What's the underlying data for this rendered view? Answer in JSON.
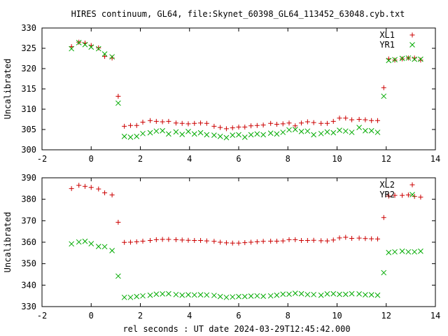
{
  "title": "HIRES continuum, GL64, file:Skynet_60398_GL64_113452_63048.cyb.txt",
  "xlabel": "rel seconds : UT date 2024-03-29T12:45:42.000",
  "colors": {
    "plus_series": "#cc0000",
    "x_series": "#00aa00",
    "frame": "#000000"
  },
  "chart_data": [
    {
      "type": "scatter",
      "ylabel": "Uncalibrated",
      "xlim": [
        -2,
        14
      ],
      "ylim": [
        300,
        330
      ],
      "xticks": [
        "-2",
        "0",
        "2",
        "4",
        "6",
        "8",
        "10",
        "12",
        "14"
      ],
      "yticks": [
        "300",
        "305",
        "310",
        "315",
        "320",
        "325",
        "330"
      ],
      "legend_position": "top-right",
      "series": [
        {
          "name": "XL1",
          "marker": "plus",
          "points": [
            [
              -0.8,
              325.4
            ],
            [
              -0.5,
              326.5
            ],
            [
              -0.25,
              326.3
            ],
            [
              0.0,
              325.7
            ],
            [
              0.3,
              325.1
            ],
            [
              0.55,
              323.0
            ],
            [
              0.85,
              322.6
            ],
            [
              1.1,
              313.2
            ],
            [
              1.35,
              305.8
            ],
            [
              1.6,
              306.0
            ],
            [
              1.85,
              306.0
            ],
            [
              2.1,
              306.8
            ],
            [
              2.4,
              307.2
            ],
            [
              2.65,
              307.0
            ],
            [
              2.9,
              306.9
            ],
            [
              3.15,
              307.0
            ],
            [
              3.45,
              306.6
            ],
            [
              3.7,
              306.5
            ],
            [
              3.95,
              306.4
            ],
            [
              4.2,
              306.5
            ],
            [
              4.45,
              306.6
            ],
            [
              4.7,
              306.5
            ],
            [
              5.0,
              305.8
            ],
            [
              5.25,
              305.5
            ],
            [
              5.5,
              305.2
            ],
            [
              5.75,
              305.4
            ],
            [
              6.0,
              305.6
            ],
            [
              6.25,
              305.6
            ],
            [
              6.5,
              305.9
            ],
            [
              6.75,
              306.0
            ],
            [
              7.0,
              306.1
            ],
            [
              7.3,
              306.5
            ],
            [
              7.55,
              306.3
            ],
            [
              7.8,
              306.4
            ],
            [
              8.05,
              306.6
            ],
            [
              8.3,
              305.9
            ],
            [
              8.55,
              306.6
            ],
            [
              8.8,
              306.9
            ],
            [
              9.05,
              306.7
            ],
            [
              9.35,
              306.5
            ],
            [
              9.6,
              306.5
            ],
            [
              9.85,
              307.0
            ],
            [
              10.1,
              307.8
            ],
            [
              10.35,
              307.8
            ],
            [
              10.6,
              307.4
            ],
            [
              10.9,
              307.5
            ],
            [
              11.15,
              307.4
            ],
            [
              11.4,
              307.2
            ],
            [
              11.65,
              307.2
            ],
            [
              11.9,
              315.3
            ],
            [
              12.1,
              322.4
            ],
            [
              12.35,
              322.1
            ],
            [
              12.65,
              322.4
            ],
            [
              12.9,
              322.6
            ],
            [
              13.15,
              322.6
            ],
            [
              13.4,
              322.1
            ]
          ]
        },
        {
          "name": "YR1",
          "marker": "cross",
          "points": [
            [
              -0.8,
              324.9
            ],
            [
              -0.5,
              326.4
            ],
            [
              -0.25,
              325.9
            ],
            [
              0.0,
              325.3
            ],
            [
              0.3,
              324.9
            ],
            [
              0.55,
              323.6
            ],
            [
              0.85,
              322.9
            ],
            [
              1.1,
              311.5
            ],
            [
              1.35,
              303.3
            ],
            [
              1.6,
              303.1
            ],
            [
              1.85,
              303.3
            ],
            [
              2.1,
              304.0
            ],
            [
              2.4,
              304.2
            ],
            [
              2.65,
              304.6
            ],
            [
              2.9,
              304.7
            ],
            [
              3.15,
              303.9
            ],
            [
              3.45,
              304.4
            ],
            [
              3.7,
              303.8
            ],
            [
              3.95,
              304.5
            ],
            [
              4.2,
              303.9
            ],
            [
              4.45,
              304.2
            ],
            [
              4.7,
              303.7
            ],
            [
              5.0,
              303.6
            ],
            [
              5.25,
              303.3
            ],
            [
              5.5,
              303.0
            ],
            [
              5.75,
              303.6
            ],
            [
              6.0,
              303.7
            ],
            [
              6.25,
              303.1
            ],
            [
              6.5,
              303.7
            ],
            [
              6.75,
              303.9
            ],
            [
              7.0,
              303.7
            ],
            [
              7.3,
              304.1
            ],
            [
              7.55,
              303.9
            ],
            [
              7.8,
              304.3
            ],
            [
              8.05,
              304.9
            ],
            [
              8.3,
              305.0
            ],
            [
              8.55,
              304.5
            ],
            [
              8.8,
              304.6
            ],
            [
              9.05,
              303.7
            ],
            [
              9.35,
              304.0
            ],
            [
              9.6,
              304.4
            ],
            [
              9.85,
              304.2
            ],
            [
              10.1,
              304.8
            ],
            [
              10.35,
              304.6
            ],
            [
              10.6,
              304.3
            ],
            [
              10.9,
              305.5
            ],
            [
              11.15,
              304.7
            ],
            [
              11.4,
              304.7
            ],
            [
              11.65,
              304.3
            ],
            [
              11.9,
              313.2
            ],
            [
              12.1,
              322.0
            ],
            [
              12.35,
              322.2
            ],
            [
              12.65,
              322.5
            ],
            [
              12.9,
              322.6
            ],
            [
              13.15,
              322.3
            ],
            [
              13.4,
              322.3
            ]
          ]
        }
      ]
    },
    {
      "type": "scatter",
      "ylabel": "Uncalibrated",
      "xlim": [
        -2,
        14
      ],
      "ylim": [
        330,
        390
      ],
      "xticks": [
        "-2",
        "0",
        "2",
        "4",
        "6",
        "8",
        "10",
        "12",
        "14"
      ],
      "yticks": [
        "330",
        "340",
        "350",
        "360",
        "370",
        "380",
        "390"
      ],
      "legend_position": "top-right",
      "series": [
        {
          "name": "XL2",
          "marker": "plus",
          "points": [
            [
              -0.8,
              385.0
            ],
            [
              -0.5,
              386.5
            ],
            [
              -0.25,
              386.0
            ],
            [
              0.0,
              385.5
            ],
            [
              0.3,
              384.8
            ],
            [
              0.55,
              383.0
            ],
            [
              0.85,
              382.0
            ],
            [
              1.1,
              369.3
            ],
            [
              1.35,
              359.9
            ],
            [
              1.6,
              360.0
            ],
            [
              1.85,
              360.2
            ],
            [
              2.1,
              360.5
            ],
            [
              2.4,
              360.8
            ],
            [
              2.65,
              361.2
            ],
            [
              2.9,
              361.3
            ],
            [
              3.15,
              361.3
            ],
            [
              3.45,
              361.2
            ],
            [
              3.7,
              361.0
            ],
            [
              3.95,
              360.9
            ],
            [
              4.2,
              360.8
            ],
            [
              4.45,
              360.8
            ],
            [
              4.7,
              360.6
            ],
            [
              5.0,
              360.4
            ],
            [
              5.25,
              360.0
            ],
            [
              5.5,
              359.7
            ],
            [
              5.75,
              359.6
            ],
            [
              6.0,
              359.6
            ],
            [
              6.25,
              359.8
            ],
            [
              6.5,
              360.0
            ],
            [
              6.75,
              360.2
            ],
            [
              7.0,
              360.4
            ],
            [
              7.3,
              360.5
            ],
            [
              7.55,
              360.5
            ],
            [
              7.8,
              360.6
            ],
            [
              8.05,
              361.2
            ],
            [
              8.3,
              361.2
            ],
            [
              8.55,
              360.8
            ],
            [
              8.8,
              360.8
            ],
            [
              9.05,
              360.9
            ],
            [
              9.35,
              360.7
            ],
            [
              9.6,
              360.6
            ],
            [
              9.85,
              361.0
            ],
            [
              10.1,
              362.0
            ],
            [
              10.35,
              362.3
            ],
            [
              10.6,
              361.8
            ],
            [
              10.9,
              361.9
            ],
            [
              11.15,
              361.7
            ],
            [
              11.4,
              361.6
            ],
            [
              11.65,
              361.5
            ],
            [
              11.9,
              371.5
            ],
            [
              12.1,
              381.5
            ],
            [
              12.35,
              381.8
            ],
            [
              12.65,
              381.8
            ],
            [
              12.9,
              382.0
            ],
            [
              13.15,
              381.3
            ],
            [
              13.4,
              381.0
            ]
          ]
        },
        {
          "name": "YR2",
          "marker": "cross",
          "points": [
            [
              -0.8,
              359.2
            ],
            [
              -0.5,
              360.1
            ],
            [
              -0.25,
              360.4
            ],
            [
              0.0,
              359.3
            ],
            [
              0.3,
              358.0
            ],
            [
              0.55,
              357.9
            ],
            [
              0.85,
              356.1
            ],
            [
              1.1,
              344.2
            ],
            [
              1.35,
              334.3
            ],
            [
              1.6,
              334.3
            ],
            [
              1.85,
              334.7
            ],
            [
              2.1,
              335.0
            ],
            [
              2.4,
              335.3
            ],
            [
              2.65,
              335.8
            ],
            [
              2.9,
              335.9
            ],
            [
              3.15,
              336.0
            ],
            [
              3.45,
              335.6
            ],
            [
              3.7,
              335.3
            ],
            [
              3.95,
              335.5
            ],
            [
              4.2,
              335.4
            ],
            [
              4.45,
              335.5
            ],
            [
              4.7,
              335.4
            ],
            [
              5.0,
              335.2
            ],
            [
              5.25,
              334.7
            ],
            [
              5.5,
              334.3
            ],
            [
              5.75,
              334.5
            ],
            [
              6.0,
              334.7
            ],
            [
              6.25,
              334.7
            ],
            [
              6.5,
              334.9
            ],
            [
              6.75,
              335.0
            ],
            [
              7.0,
              334.8
            ],
            [
              7.3,
              335.0
            ],
            [
              7.55,
              335.3
            ],
            [
              7.8,
              335.8
            ],
            [
              8.05,
              335.8
            ],
            [
              8.3,
              336.2
            ],
            [
              8.55,
              336.0
            ],
            [
              8.8,
              335.6
            ],
            [
              9.05,
              335.6
            ],
            [
              9.35,
              335.3
            ],
            [
              9.6,
              335.9
            ],
            [
              9.85,
              336.0
            ],
            [
              10.1,
              335.7
            ],
            [
              10.35,
              335.7
            ],
            [
              10.6,
              336.0
            ],
            [
              10.9,
              335.9
            ],
            [
              11.15,
              335.5
            ],
            [
              11.4,
              335.5
            ],
            [
              11.65,
              335.3
            ],
            [
              11.9,
              345.8
            ],
            [
              12.1,
              355.2
            ],
            [
              12.35,
              355.5
            ],
            [
              12.65,
              355.8
            ],
            [
              12.9,
              355.5
            ],
            [
              13.15,
              355.5
            ],
            [
              13.4,
              355.8
            ]
          ]
        }
      ]
    }
  ]
}
